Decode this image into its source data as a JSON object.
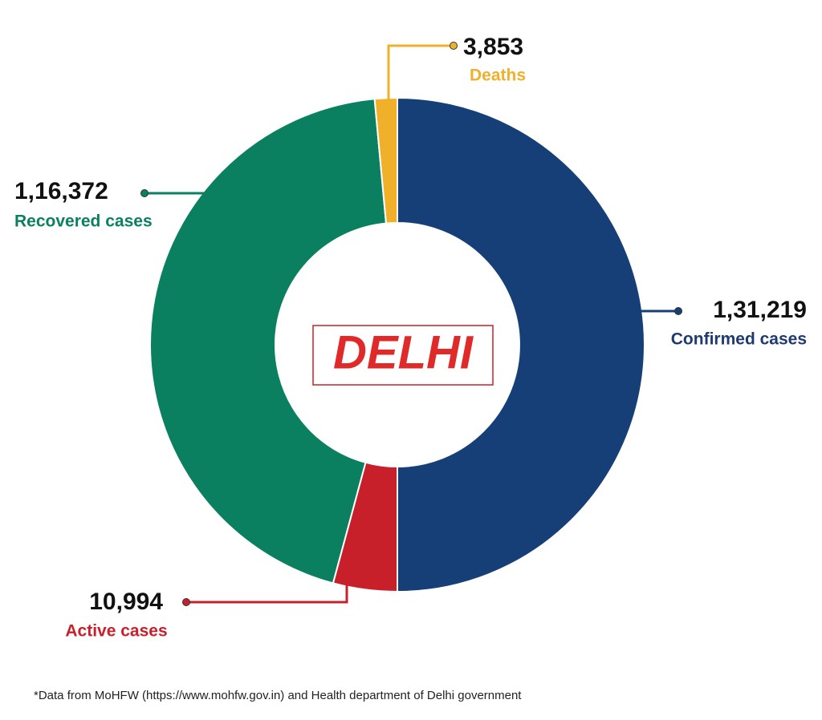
{
  "chart_data": {
    "type": "donut",
    "categories": [
      "Confirmed cases",
      "Active cases",
      "Recovered cases",
      "Deaths"
    ],
    "values": [
      131219,
      10994,
      116372,
      3853
    ],
    "value_labels": [
      "1,31,219",
      "10,994",
      "1,16,372",
      "3,853"
    ],
    "colors": [
      "#163f78",
      "#c8202a",
      "#0b8060",
      "#f0b02a"
    ],
    "center_label": "DELHI",
    "footnote": "*Data from MoHFW (https://www.mohfw.gov.in) and Health department of Delhi government"
  }
}
